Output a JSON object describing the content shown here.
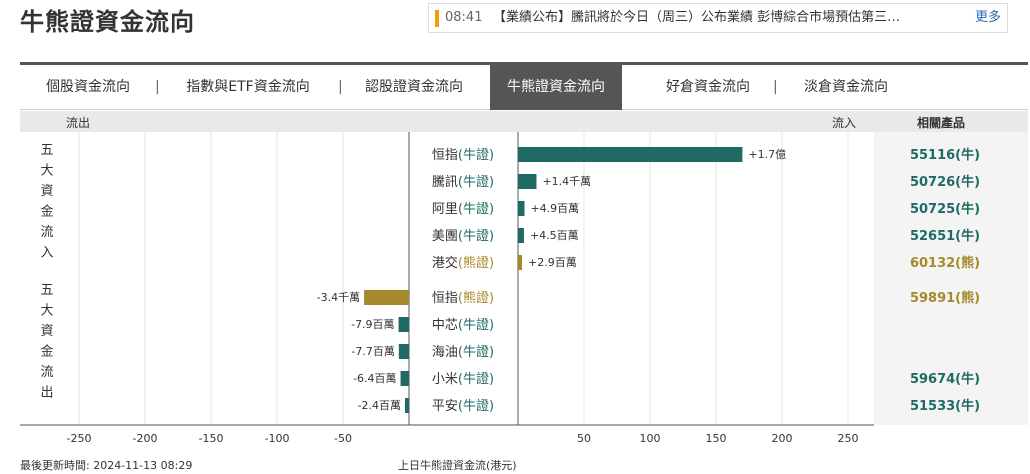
{
  "page_title": "牛熊證資金流向",
  "ticker": {
    "time": "08:41",
    "text": "【業績公布】騰訊將於今日（周三）公布業績 彭博綜合市場預估第三…",
    "more": "更多",
    "accent": "#f0a000"
  },
  "tabs": [
    {
      "label": "個股資金流向",
      "active": false
    },
    {
      "label": "指數與ETF資金流向",
      "active": false
    },
    {
      "label": "認股證資金流向",
      "active": false
    },
    {
      "label": "牛熊證資金流向",
      "active": true
    },
    {
      "label": "好倉資金流向",
      "active": false
    },
    {
      "label": "淡倉資金流向",
      "active": false
    }
  ],
  "tab_separator": "|",
  "header": {
    "outflow": "流出",
    "inflow": "流入",
    "related": "相關產品"
  },
  "colors": {
    "bull": "#1f6b64",
    "bear": "#a6892a"
  },
  "chart_data": {
    "type": "bar",
    "groups": [
      {
        "label": "五大資金流入",
        "label_chars": [
          "五",
          "大",
          "資",
          "金",
          "流",
          "入"
        ]
      },
      {
        "label": "五大資金流出",
        "label_chars": [
          "五",
          "大",
          "資",
          "金",
          "流",
          "出"
        ]
      }
    ],
    "rows": [
      {
        "group": 0,
        "name": "恒指",
        "kind": "(牛證)",
        "type": "bull",
        "value": 170,
        "value_label": "+1.7億",
        "product": "55116(牛)"
      },
      {
        "group": 0,
        "name": "騰訊",
        "kind": "(牛證)",
        "type": "bull",
        "value": 14,
        "value_label": "+1.4千萬",
        "product": "50726(牛)"
      },
      {
        "group": 0,
        "name": "阿里",
        "kind": "(牛證)",
        "type": "bull",
        "value": 4.9,
        "value_label": "+4.9百萬",
        "product": "50725(牛)"
      },
      {
        "group": 0,
        "name": "美團",
        "kind": "(牛證)",
        "type": "bull",
        "value": 4.5,
        "value_label": "+4.5百萬",
        "product": "52651(牛)"
      },
      {
        "group": 0,
        "name": "港交",
        "kind": "(熊證)",
        "type": "bear",
        "value": 2.9,
        "value_label": "+2.9百萬",
        "product": "60132(熊)"
      },
      {
        "group": 1,
        "name": "恒指",
        "kind": "(熊證)",
        "type": "bear",
        "value": -34,
        "value_label": "-3.4千萬",
        "product": "59891(熊)"
      },
      {
        "group": 1,
        "name": "中芯",
        "kind": "(牛證)",
        "type": "bull",
        "value": -7.9,
        "value_label": "-7.9百萬",
        "product": ""
      },
      {
        "group": 1,
        "name": "海油",
        "kind": "(牛證)",
        "type": "bull",
        "value": -7.7,
        "value_label": "-7.7百萬",
        "product": ""
      },
      {
        "group": 1,
        "name": "小米",
        "kind": "(牛證)",
        "type": "bull",
        "value": -6.4,
        "value_label": "-6.4百萬",
        "product": "59674(牛)"
      },
      {
        "group": 1,
        "name": "平安",
        "kind": "(牛證)",
        "type": "bull",
        "value": -2.4,
        "value_label": "-2.4百萬",
        "product": "51533(牛)"
      }
    ],
    "x_ticks_left": [
      -250,
      -200,
      -150,
      -100,
      -50
    ],
    "x_ticks_right": [
      50,
      100,
      150,
      200,
      250
    ],
    "xlim": [
      -250,
      250
    ],
    "grid": true
  },
  "footer": {
    "updated": "最後更新時間: 2024-11-13 08:29",
    "caption": "上日牛熊證資金流(港元)"
  }
}
